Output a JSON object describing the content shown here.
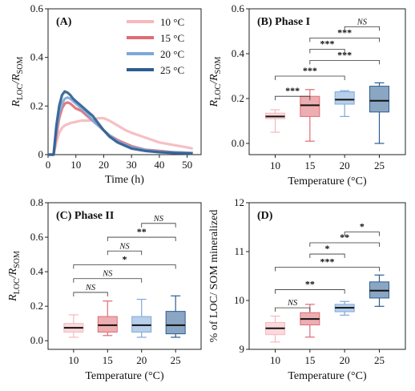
{
  "colors": {
    "t10": "#f5b8be",
    "t15": "#df6b73",
    "t20": "#7ea8d8",
    "t25": "#2c5d91"
  },
  "chart_data": [
    {
      "panel": "A",
      "type": "line",
      "title": "(A)",
      "xlabel": "Time (h)",
      "ylabel_main": "R",
      "ylabel_sub1": "LOC",
      "ylabel_sep": "/R",
      "ylabel_sub2": "SOM",
      "xlim": [
        0,
        55
      ],
      "ylim": [
        0,
        0.6
      ],
      "xticks": [
        0,
        10,
        20,
        30,
        40,
        50
      ],
      "yticks": [
        0.0,
        0.2,
        0.4,
        0.6
      ],
      "ytick_labels": [
        "0",
        "0.2",
        "0.4",
        "0.6"
      ],
      "legend_position": "top-right",
      "series": [
        {
          "name": "10 °C",
          "color_key": "t10",
          "x": [
            0,
            1,
            2,
            3,
            4,
            5,
            6,
            8,
            10,
            12,
            15,
            18,
            20,
            22,
            25,
            28,
            30,
            35,
            40,
            45,
            50,
            52
          ],
          "y": [
            0,
            0,
            0,
            0.05,
            0.09,
            0.11,
            0.12,
            0.13,
            0.135,
            0.14,
            0.14,
            0.15,
            0.15,
            0.14,
            0.12,
            0.1,
            0.09,
            0.07,
            0.05,
            0.04,
            0.03,
            0.025
          ]
        },
        {
          "name": "15 °C",
          "color_key": "t15",
          "x": [
            0,
            1,
            2,
            3,
            4,
            5,
            6,
            7,
            8,
            9,
            10,
            12,
            14,
            16,
            18,
            20,
            22,
            25,
            28,
            30,
            35,
            40,
            45,
            50,
            52
          ],
          "y": [
            0,
            0,
            0,
            0.08,
            0.15,
            0.19,
            0.21,
            0.215,
            0.21,
            0.2,
            0.19,
            0.18,
            0.16,
            0.14,
            0.12,
            0.1,
            0.08,
            0.06,
            0.045,
            0.035,
            0.02,
            0.015,
            0.01,
            0.008,
            0.007
          ]
        },
        {
          "name": "20 °C",
          "color_key": "t20",
          "x": [
            0,
            1,
            2,
            3,
            4,
            5,
            6,
            7,
            8,
            9,
            10,
            12,
            14,
            16,
            18,
            20,
            22,
            25,
            28,
            30,
            35,
            40,
            45,
            50,
            52
          ],
          "y": [
            0,
            0,
            0,
            0.1,
            0.17,
            0.21,
            0.23,
            0.235,
            0.23,
            0.22,
            0.21,
            0.19,
            0.17,
            0.14,
            0.12,
            0.1,
            0.08,
            0.055,
            0.04,
            0.03,
            0.02,
            0.012,
            0.01,
            0.008,
            0.007
          ]
        },
        {
          "name": "25 °C",
          "color_key": "t25",
          "x": [
            0,
            1,
            2,
            3,
            4,
            5,
            6,
            7,
            8,
            9,
            10,
            12,
            14,
            16,
            18,
            20,
            22,
            25,
            28,
            30,
            35,
            40,
            45,
            50,
            52
          ],
          "y": [
            0,
            0,
            0,
            0.12,
            0.2,
            0.245,
            0.26,
            0.255,
            0.245,
            0.23,
            0.22,
            0.2,
            0.18,
            0.16,
            0.13,
            0.1,
            0.075,
            0.05,
            0.035,
            0.025,
            0.015,
            0.01,
            0.007,
            0.005,
            0.004
          ]
        }
      ]
    },
    {
      "panel": "B",
      "type": "box",
      "title": "(B) Phase I",
      "xlabel": "Temperature (°C)",
      "ylabel_main": "R",
      "ylabel_sub1": "LOC",
      "ylabel_sep": "/R",
      "ylabel_sub2": "SOM",
      "categories": [
        "10",
        "15",
        "20",
        "25"
      ],
      "ylim": [
        -0.05,
        0.6
      ],
      "yticks": [
        0.0,
        0.2,
        0.4,
        0.6
      ],
      "ytick_labels": [
        "0.0",
        "0.2",
        "0.4",
        "0.6"
      ],
      "boxes": [
        {
          "min": 0.05,
          "q1": 0.11,
          "median": 0.12,
          "q3": 0.135,
          "max": 0.15
        },
        {
          "min": 0.01,
          "q1": 0.12,
          "median": 0.17,
          "q3": 0.21,
          "max": 0.24
        },
        {
          "min": 0.12,
          "q1": 0.175,
          "median": 0.195,
          "q3": 0.23,
          "max": 0.235
        },
        {
          "min": 0.0,
          "q1": 0.14,
          "median": 0.19,
          "q3": 0.255,
          "max": 0.27
        }
      ],
      "comparisons": [
        {
          "from": "20",
          "to": "25",
          "label": "NS",
          "y": 0.52
        },
        {
          "from": "15",
          "to": "25",
          "label": "***",
          "y": 0.47
        },
        {
          "from": "15",
          "to": "20",
          "label": "***",
          "y": 0.42
        },
        {
          "from": "15",
          "to": "25",
          "label": "***",
          "y": 0.37
        },
        {
          "from": "10",
          "to": "20",
          "label": "***",
          "y": 0.3
        },
        {
          "from": "10",
          "to": "15",
          "label": "***",
          "y": 0.21
        }
      ]
    },
    {
      "panel": "C",
      "type": "box",
      "title": "(C) Phase II",
      "xlabel": "Temperature (°C)",
      "ylabel_main": "R",
      "ylabel_sub1": "LOC",
      "ylabel_sep": "/R",
      "ylabel_sub2": "SOM",
      "categories": [
        "10",
        "15",
        "20",
        "25"
      ],
      "ylim": [
        -0.05,
        0.8
      ],
      "yticks": [
        0.0,
        0.2,
        0.4,
        0.6,
        0.8
      ],
      "ytick_labels": [
        "0.0",
        "0.2",
        "0.4",
        "0.6",
        "0.8"
      ],
      "boxes": [
        {
          "min": 0.02,
          "q1": 0.05,
          "median": 0.075,
          "q3": 0.1,
          "max": 0.15
        },
        {
          "min": 0.03,
          "q1": 0.05,
          "median": 0.09,
          "q3": 0.14,
          "max": 0.23
        },
        {
          "min": 0.02,
          "q1": 0.05,
          "median": 0.09,
          "q3": 0.14,
          "max": 0.24
        },
        {
          "min": 0.02,
          "q1": 0.04,
          "median": 0.09,
          "q3": 0.17,
          "max": 0.26
        }
      ],
      "comparisons": [
        {
          "from": "20",
          "to": "25",
          "label": "NS",
          "y": 0.68
        },
        {
          "from": "15",
          "to": "25",
          "label": "**",
          "y": 0.6
        },
        {
          "from": "15",
          "to": "20",
          "label": "NS",
          "y": 0.52
        },
        {
          "from": "10",
          "to": "25",
          "label": "*",
          "y": 0.44
        },
        {
          "from": "10",
          "to": "20",
          "label": "NS",
          "y": 0.36
        },
        {
          "from": "10",
          "to": "15",
          "label": "NS",
          "y": 0.28
        }
      ]
    },
    {
      "panel": "D",
      "type": "box",
      "title": "(D)",
      "xlabel": "Temperature (°C)",
      "ylabel": "% of LOC/ SOM mineralized",
      "categories": [
        "10",
        "15",
        "20",
        "25"
      ],
      "ylim": [
        9,
        12
      ],
      "yticks": [
        9,
        10,
        11,
        12
      ],
      "ytick_labels": [
        "9",
        "10",
        "11",
        "12"
      ],
      "boxes": [
        {
          "min": 9.15,
          "q1": 9.3,
          "median": 9.43,
          "q3": 9.55,
          "max": 9.68
        },
        {
          "min": 9.25,
          "q1": 9.5,
          "median": 9.62,
          "q3": 9.75,
          "max": 9.92
        },
        {
          "min": 9.7,
          "q1": 9.77,
          "median": 9.85,
          "q3": 9.92,
          "max": 9.98
        },
        {
          "min": 9.88,
          "q1": 10.05,
          "median": 10.2,
          "q3": 10.38,
          "max": 10.52
        }
      ],
      "comparisons": [
        {
          "from": "20",
          "to": "25",
          "label": "*",
          "y": 11.4
        },
        {
          "from": "15",
          "to": "25",
          "label": "**",
          "y": 11.18
        },
        {
          "from": "15",
          "to": "20",
          "label": "*",
          "y": 10.95
        },
        {
          "from": "10",
          "to": "25",
          "label": "***",
          "y": 10.68
        },
        {
          "from": "10",
          "to": "20",
          "label": "**",
          "y": 10.22
        },
        {
          "from": "10",
          "to": "15",
          "label": "NS",
          "y": 9.85
        }
      ]
    }
  ]
}
